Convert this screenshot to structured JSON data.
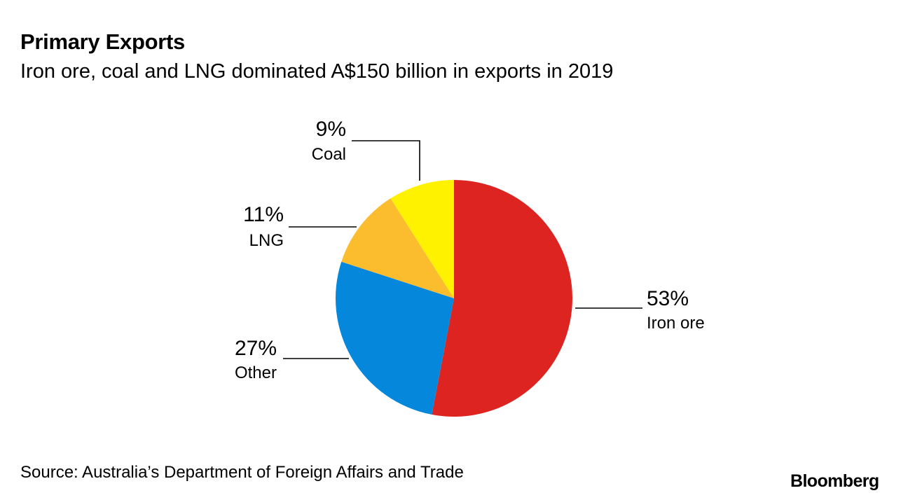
{
  "header": {
    "title": "Primary Exports",
    "subtitle": "Iron ore, coal and LNG dominated A$150 billion in exports in 2019"
  },
  "footer": {
    "source": "Source: Australia’s Department of Foreign Affairs and Trade",
    "logo": "Bloomberg"
  },
  "chart_data": {
    "type": "pie",
    "title": "Primary Exports",
    "subtitle": "Iron ore, coal and LNG dominated A$150 billion in exports in 2019",
    "slices": [
      {
        "name": "Iron ore",
        "value": 53,
        "label": "53%",
        "color": "#dd2421"
      },
      {
        "name": "Other",
        "value": 27,
        "label": "27%",
        "color": "#0587db"
      },
      {
        "name": "LNG",
        "value": 11,
        "label": "11%",
        "color": "#fbbc2e"
      },
      {
        "name": "Coal",
        "value": 9,
        "label": "9%",
        "color": "#fff200"
      }
    ],
    "legend": "none",
    "direction": "clockwise",
    "start": "12 o'clock"
  }
}
